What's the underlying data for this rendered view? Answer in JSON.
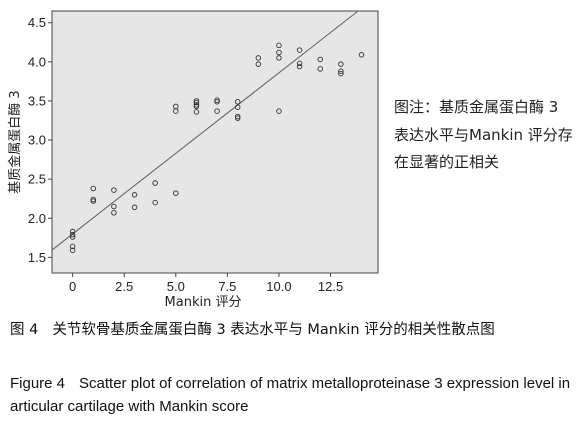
{
  "chart_data": {
    "type": "scatter",
    "xlabel": "Mankin 评分",
    "ylabel": "基质金属蛋白酶 3",
    "xlim": [
      -1.0,
      14.8
    ],
    "ylim": [
      1.3,
      4.65
    ],
    "xticks": [
      0,
      2.5,
      5.0,
      7.5,
      10.0,
      12.5
    ],
    "xtick_labels": [
      "0",
      "2.5",
      "5.0",
      "7.5",
      "10.0",
      "12.5"
    ],
    "yticks": [
      1.5,
      2.0,
      2.5,
      3.0,
      3.5,
      4.0,
      4.5
    ],
    "ytick_labels": [
      "1.5",
      "2.0",
      "2.5",
      "3.0",
      "3.5",
      "4.0",
      "4.5"
    ],
    "grid": false,
    "legend": "none",
    "background_color": "#e6e6e6",
    "marker_color": "#333333",
    "fit_line": {
      "intercept": 1.8,
      "slope": 0.206
    },
    "points": [
      {
        "x": 0,
        "y": 1.83
      },
      {
        "x": 0,
        "y": 1.79
      },
      {
        "x": 0,
        "y": 1.76
      },
      {
        "x": 0,
        "y": 1.64
      },
      {
        "x": 0,
        "y": 1.59
      },
      {
        "x": 1,
        "y": 2.38
      },
      {
        "x": 1,
        "y": 2.24
      },
      {
        "x": 1,
        "y": 2.22
      },
      {
        "x": 2,
        "y": 2.36
      },
      {
        "x": 2,
        "y": 2.15
      },
      {
        "x": 2,
        "y": 2.07
      },
      {
        "x": 3,
        "y": 2.3
      },
      {
        "x": 3,
        "y": 2.14
      },
      {
        "x": 4,
        "y": 2.45
      },
      {
        "x": 4,
        "y": 2.2
      },
      {
        "x": 5,
        "y": 3.43
      },
      {
        "x": 5,
        "y": 3.37
      },
      {
        "x": 5,
        "y": 2.32
      },
      {
        "x": 6,
        "y": 3.5
      },
      {
        "x": 6,
        "y": 3.48
      },
      {
        "x": 6,
        "y": 3.45
      },
      {
        "x": 6,
        "y": 3.43
      },
      {
        "x": 6,
        "y": 3.36
      },
      {
        "x": 7,
        "y": 3.51
      },
      {
        "x": 7,
        "y": 3.49
      },
      {
        "x": 7,
        "y": 3.37
      },
      {
        "x": 8,
        "y": 3.49
      },
      {
        "x": 8,
        "y": 3.42
      },
      {
        "x": 8,
        "y": 3.3
      },
      {
        "x": 8,
        "y": 3.28
      },
      {
        "x": 9,
        "y": 4.05
      },
      {
        "x": 9,
        "y": 3.97
      },
      {
        "x": 10,
        "y": 4.21
      },
      {
        "x": 10,
        "y": 4.12
      },
      {
        "x": 10,
        "y": 4.05
      },
      {
        "x": 10,
        "y": 3.37
      },
      {
        "x": 11,
        "y": 4.15
      },
      {
        "x": 11,
        "y": 3.98
      },
      {
        "x": 11,
        "y": 3.94
      },
      {
        "x": 12,
        "y": 4.03
      },
      {
        "x": 12,
        "y": 3.91
      },
      {
        "x": 13,
        "y": 3.97
      },
      {
        "x": 13,
        "y": 3.88
      },
      {
        "x": 13,
        "y": 3.85
      },
      {
        "x": 14,
        "y": 4.09
      }
    ]
  },
  "note": {
    "text": "图注：基质金属蛋白酶 3 表达水平与Mankin 评分存在显著的正相关"
  },
  "caption": {
    "cn_number": "图 4",
    "cn_text": "关节软骨基质金属蛋白酶 3 表达水平与 Mankin 评分的相关性散点图",
    "en_number": "Figure 4",
    "en_text": "Scatter plot of correlation of matrix metalloproteinase 3 expression level in articular cartilage with Mankin score"
  }
}
